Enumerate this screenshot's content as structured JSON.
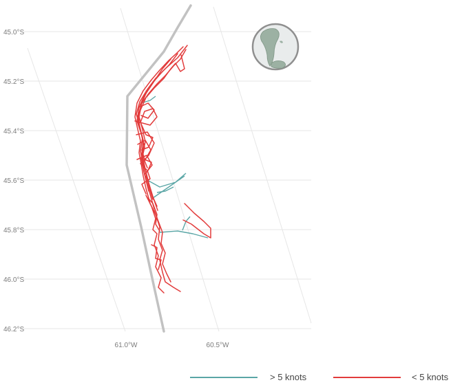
{
  "map": {
    "lat_ticks": [
      "45.0°S",
      "45.2°S",
      "45.4°S",
      "45.6°S",
      "45.8°S",
      "46.0°S",
      "46.2°S"
    ],
    "lon_ticks": [
      "61.0°W",
      "60.5°W"
    ],
    "colors": {
      "background": "#ffffff",
      "grid": "#e6e6e6",
      "boundary": "#c2c2c2",
      "fast": "#5aa6a6",
      "slow": "#e23b3b",
      "globe_ocean": "#e9ecec",
      "globe_land": "#9cb1a3"
    }
  },
  "legend": {
    "items": [
      {
        "label": "> 5 knots",
        "color": "#5aa6a6"
      },
      {
        "label": "< 5 knots",
        "color": "#e23b3b"
      }
    ]
  }
}
